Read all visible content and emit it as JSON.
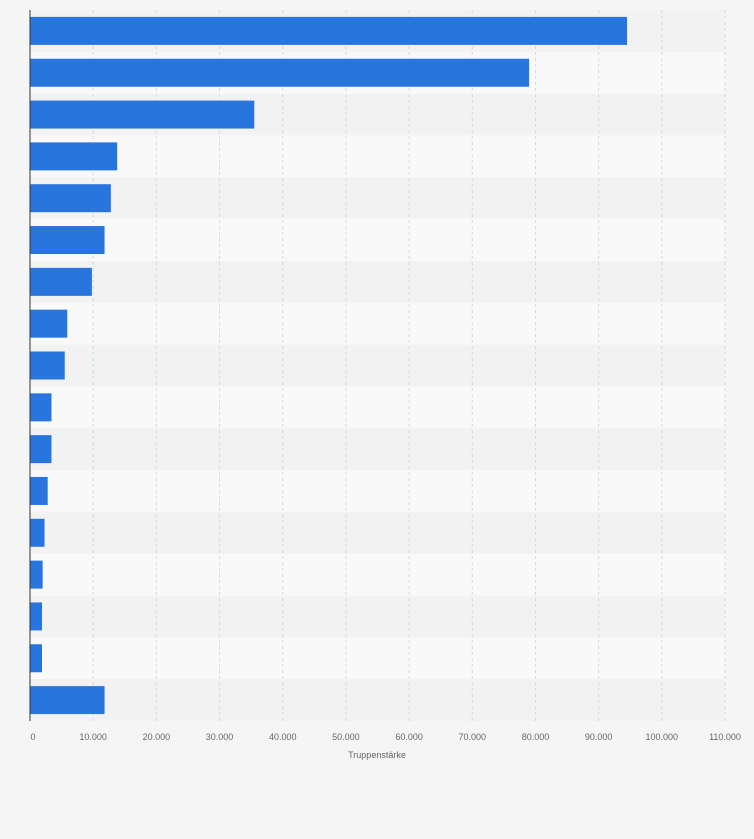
{
  "chart_data": {
    "type": "bar",
    "orientation": "horizontal",
    "title": "",
    "xlabel": "Truppenstärke",
    "ylabel": "",
    "xlim": [
      0,
      110000
    ],
    "x_ticks": [
      0,
      10000,
      20000,
      30000,
      40000,
      50000,
      60000,
      70000,
      80000,
      90000,
      100000,
      110000
    ],
    "x_tick_labels": [
      "0",
      "10.000",
      "20.000",
      "30.000",
      "40.000",
      "50.000",
      "60.000",
      "70.000",
      "80.000",
      "90.000",
      "100.000",
      "110.000"
    ],
    "grid": true,
    "legend": "none",
    "bar_color": "#2876dd",
    "values": [
      94500,
      79000,
      35500,
      13800,
      12800,
      11800,
      9800,
      5900,
      5500,
      3400,
      3400,
      2800,
      2300,
      2000,
      1900,
      1900,
      11800
    ]
  }
}
